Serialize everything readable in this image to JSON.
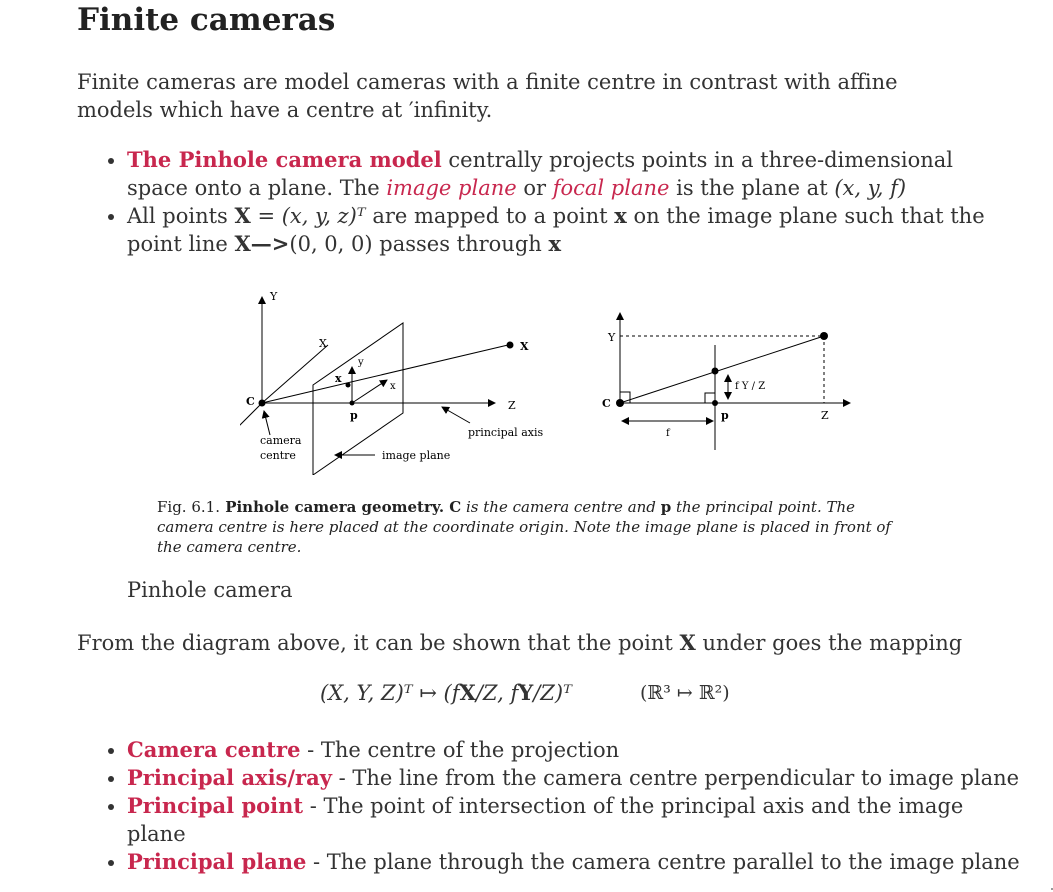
{
  "title": "Finite cameras",
  "intro": "Finite cameras are model cameras with a finite centre in contrast with affine models which have a centre at ′infinity.",
  "bullets1": {
    "item1": {
      "term": "The Pinhole camera model",
      "text1": " centrally projects points in a three-dimensional space onto a plane. The ",
      "image_plane": "image plane",
      "or": " or ",
      "focal_plane": "focal plane",
      "text2": " is the plane at ",
      "coords": "(x, y, f)"
    },
    "item2": {
      "text1": "All points ",
      "X": "X",
      "eq": " = (x, y, z)ᵀ",
      "text2": " are mapped to a point ",
      "x": "x",
      "text3": " on the image plane such that the point line ",
      "arrow": "X—>",
      "origin": "(0, 0, 0)",
      "text4": " passes through ",
      "x2": "x"
    }
  },
  "figure": {
    "left_labels": {
      "Y": "Y",
      "X_axis": "X",
      "x_point": "x",
      "y": "y",
      "x_small": "x",
      "p": "p",
      "C": "C",
      "Z": "Z",
      "X_world": "X",
      "camera": "camera",
      "centre": "centre",
      "image_plane": "image plane",
      "principal_axis": "principal axis"
    },
    "right_labels": {
      "Y": "Y",
      "C": "C",
      "p": "p",
      "fYZ": "f Y / Z",
      "f": "f",
      "Z": "Z"
    }
  },
  "caption": {
    "fig": "Fig. 6.1.",
    "bold": " Pinhole camera geometry.",
    "C": " C",
    "t1": " is the camera centre and ",
    "p": "p",
    "t2": " the principal point. The camera centre is here placed at the coordinate origin. Note the image plane is placed in front of the camera centre."
  },
  "pinhole_label": "Pinhole camera",
  "mapping_text": {
    "t1": "From the diagram above, it can be shown that the point ",
    "X": "X",
    "t2": " under goes the mapping"
  },
  "formula": {
    "lhs": "(X, Y, Z)ᵀ ↦ (f",
    "X": "X",
    "mid": "/Z, f",
    "Y": "Y",
    "rhs": "/Z)ᵀ",
    "domain": "(ℝ³ ↦ ℝ²)"
  },
  "bullets2": [
    {
      "term": "Camera centre",
      "desc": " - The centre of the projection"
    },
    {
      "term": "Principal axis/ray",
      "desc": " - The line from the camera centre perpendicular to image plane"
    },
    {
      "term": "Principal point",
      "desc": " - The point of intersection of the principal axis and the image plane"
    },
    {
      "term": "Principal plane",
      "desc": " - The plane through the camera centre parallel to the image plane"
    }
  ],
  "colors": {
    "accent": "#c8274e",
    "text": "#333333"
  }
}
